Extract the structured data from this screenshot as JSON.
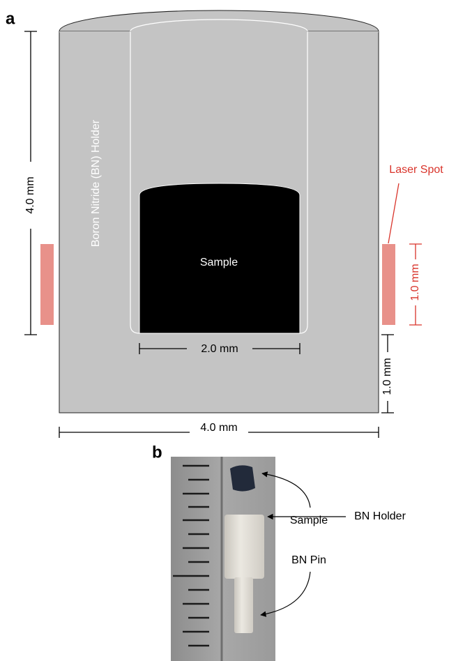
{
  "panel_a": {
    "label": "a",
    "holder_label": "Boron Nitride (BN) Holder",
    "sample_label": "Sample",
    "dimensions": {
      "height": "4.0 mm",
      "width": "4.0 mm",
      "sample_width": "2.0 mm",
      "bottom": "1.0 mm",
      "laser_height": "1.0 mm"
    },
    "laser_label": "Laser Spot"
  },
  "panel_b": {
    "label": "b",
    "annotations": [
      "Sample",
      "BN Holder",
      "BN Pin"
    ]
  }
}
